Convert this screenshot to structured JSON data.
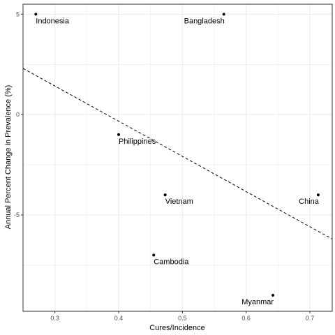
{
  "chart_data": {
    "type": "scatter",
    "xlabel": "Cures/Incidence",
    "ylabel": "Annual Percent Change in Prevalence (%)",
    "xlim": [
      0.25,
      0.735
    ],
    "ylim": [
      -9.8,
      5.5
    ],
    "x_ticks": [
      0.3,
      0.4,
      0.5,
      0.6,
      0.7
    ],
    "x_tick_labels": [
      "0.3",
      "0.4",
      "0.5",
      "0.6",
      "0.7"
    ],
    "y_ticks": [
      -5,
      0,
      5
    ],
    "y_tick_labels": [
      "-5",
      "0",
      "5"
    ],
    "grid": true,
    "points": [
      {
        "label": "Indonesia",
        "x": 0.27,
        "y": 5.0
      },
      {
        "label": "Bangladesh",
        "x": 0.565,
        "y": 5.0
      },
      {
        "label": "Philippines",
        "x": 0.4,
        "y": -1.0
      },
      {
        "label": "Vietnam",
        "x": 0.473,
        "y": -4.0
      },
      {
        "label": "China",
        "x": 0.713,
        "y": -4.0
      },
      {
        "label": "Cambodia",
        "x": 0.455,
        "y": -7.0
      },
      {
        "label": "Myanmar",
        "x": 0.642,
        "y": -9.0
      }
    ],
    "trend_line": {
      "style": "dashed",
      "x": [
        0.25,
        0.735
      ],
      "y": [
        2.3,
        -6.2
      ]
    },
    "colors": {
      "point": "#000000",
      "grid": "#ebebeb",
      "border": "#333333"
    }
  }
}
